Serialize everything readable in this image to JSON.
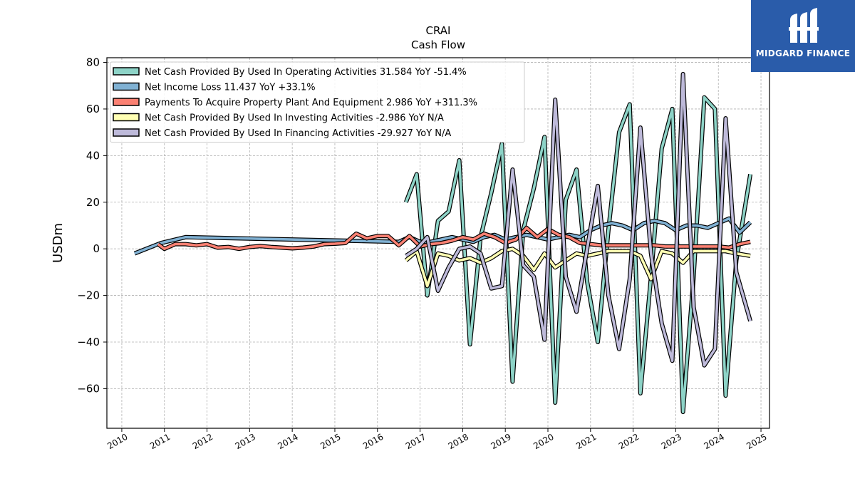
{
  "branding": {
    "name": "MIDGARD FINANCE",
    "icon": "midgard-logo-icon",
    "background": "#2a5caa"
  },
  "chart_data": {
    "type": "line",
    "title": "CRAI",
    "subtitle": "Cash Flow",
    "xlabel": "",
    "ylabel": "USDm",
    "xlim": [
      2009.65,
      2025.2
    ],
    "ylim": [
      -77,
      82
    ],
    "grid": true,
    "legend_position": "top-left",
    "x_ticks": [
      2010,
      2011,
      2012,
      2013,
      2014,
      2015,
      2016,
      2017,
      2018,
      2019,
      2020,
      2021,
      2022,
      2023,
      2024,
      2025
    ],
    "y_ticks": [
      80,
      60,
      40,
      20,
      0,
      -20,
      -40,
      -60
    ],
    "y_tick_labels": [
      "80",
      "60",
      "40",
      "20",
      "0",
      "−20",
      "−40",
      "−60"
    ],
    "series": [
      {
        "name": "Net Cash Provided By Used In Operating Activities  31.584 YoY -51.4%",
        "color": "#8dd3c7",
        "x": [
          2016.67,
          2016.92,
          2017.17,
          2017.42,
          2017.67,
          2017.92,
          2018.17,
          2018.42,
          2018.67,
          2018.92,
          2019.17,
          2019.42,
          2019.67,
          2019.92,
          2020.17,
          2020.42,
          2020.67,
          2020.92,
          2021.17,
          2021.42,
          2021.67,
          2021.92,
          2022.17,
          2022.42,
          2022.67,
          2022.92,
          2023.17,
          2023.42,
          2023.67,
          2023.92,
          2024.17,
          2024.42,
          2024.75
        ],
        "y": [
          20,
          32,
          -20,
          12,
          16,
          38,
          -41,
          5,
          24,
          45,
          -57,
          8,
          26,
          48,
          -66,
          21,
          34,
          -14,
          -40,
          8,
          50,
          62,
          -62,
          -12,
          43,
          60,
          -70,
          -12,
          65,
          60,
          -63,
          -5,
          32
        ]
      },
      {
        "name": "Net Income Loss  11.437 YoY +33.1%",
        "color": "#80b1d3",
        "x": [
          2010.3,
          2010.92,
          2011.5,
          2016.5,
          2016.75,
          2017.0,
          2017.25,
          2017.5,
          2017.75,
          2018.0,
          2018.25,
          2018.5,
          2018.75,
          2019.0,
          2019.25,
          2019.5,
          2019.75,
          2020.0,
          2020.25,
          2020.5,
          2020.75,
          2021.0,
          2021.25,
          2021.5,
          2021.75,
          2022.0,
          2022.25,
          2022.5,
          2022.75,
          2023.0,
          2023.25,
          2023.5,
          2023.75,
          2024.0,
          2024.25,
          2024.5,
          2024.75
        ],
        "y": [
          -2,
          2.5,
          5,
          3,
          5,
          3,
          3,
          4,
          5,
          4,
          3,
          5,
          6,
          4,
          5,
          6,
          5,
          4,
          5,
          6,
          5,
          8,
          10,
          11,
          10,
          8,
          11,
          12,
          11,
          8,
          10,
          10,
          9,
          11,
          13,
          7,
          11.4
        ]
      },
      {
        "name": "Payments To Acquire Property Plant And Equipment  2.986 YoY +311.3%",
        "color": "#fb8072",
        "x": [
          2010.85,
          2011.0,
          2011.25,
          2011.5,
          2011.75,
          2012.0,
          2012.25,
          2012.5,
          2012.75,
          2013.0,
          2013.25,
          2013.5,
          2013.75,
          2014.0,
          2014.25,
          2014.5,
          2014.75,
          2015.0,
          2015.25,
          2015.5,
          2015.75,
          2016.0,
          2016.25,
          2016.5,
          2016.75,
          2017.0,
          2017.25,
          2017.5,
          2017.75,
          2018.0,
          2018.25,
          2018.5,
          2018.75,
          2019.0,
          2019.25,
          2019.5,
          2019.75,
          2020.0,
          2020.25,
          2020.5,
          2020.75,
          2021.0,
          2021.25,
          2021.5,
          2021.75,
          2022.0,
          2022.25,
          2022.5,
          2022.75,
          2023.0,
          2023.25,
          2023.5,
          2023.75,
          2024.0,
          2024.25,
          2024.5,
          2024.75
        ],
        "y": [
          2,
          0,
          2,
          2,
          1.5,
          2,
          0.5,
          0.8,
          0,
          0.8,
          1.2,
          0.8,
          0.5,
          0.2,
          0.5,
          1,
          2,
          2.2,
          2.5,
          6.5,
          4.5,
          5.5,
          5.5,
          1.5,
          5.5,
          1,
          2,
          2.5,
          3.5,
          5,
          4,
          6.5,
          5,
          2.5,
          4,
          9,
          5,
          8.5,
          6,
          5,
          2.5,
          2,
          1.5,
          1.5,
          1.5,
          1.5,
          1.5,
          1.5,
          1,
          1,
          1,
          1,
          1,
          1,
          0.5,
          2,
          3
        ]
      },
      {
        "name": "Net Cash Provided By Used In Investing Activities  -2.986 YoY N/A",
        "color": "#ffffb3",
        "x": [
          2016.67,
          2016.92,
          2017.17,
          2017.42,
          2017.67,
          2017.92,
          2018.17,
          2018.42,
          2018.67,
          2018.92,
          2019.17,
          2019.42,
          2019.67,
          2019.92,
          2020.17,
          2020.42,
          2020.67,
          2020.92,
          2021.17,
          2021.42,
          2021.67,
          2021.92,
          2022.17,
          2022.42,
          2022.67,
          2022.92,
          2023.17,
          2023.42,
          2023.67,
          2023.92,
          2024.17,
          2024.42,
          2024.75
        ],
        "y": [
          -5,
          -1,
          -16,
          -2,
          -3,
          -5,
          -4,
          -6,
          -4,
          -1,
          0,
          -3,
          -9,
          -2,
          -8,
          -5,
          -2,
          -3,
          -2,
          -1,
          -1,
          -1,
          -3,
          -13,
          -1,
          -2,
          -6,
          -1,
          -1,
          -1,
          -1,
          -2,
          -3
        ]
      },
      {
        "name": "Net Cash Provided By Used In Financing Activities  -29.927 YoY N/A",
        "color": "#bebada",
        "x": [
          2016.67,
          2016.92,
          2017.17,
          2017.42,
          2017.67,
          2017.92,
          2018.17,
          2018.42,
          2018.67,
          2018.92,
          2019.17,
          2019.42,
          2019.67,
          2019.92,
          2020.17,
          2020.42,
          2020.67,
          2020.92,
          2021.17,
          2021.42,
          2021.67,
          2021.92,
          2022.17,
          2022.42,
          2022.67,
          2022.92,
          2023.17,
          2023.42,
          2023.67,
          2023.92,
          2024.17,
          2024.42,
          2024.75
        ],
        "y": [
          -3,
          0,
          5,
          -18,
          -8,
          0,
          1,
          -2,
          -17,
          -16,
          34,
          -7,
          -12,
          -39,
          64,
          -12,
          -27,
          0,
          27,
          -20,
          -43,
          -13,
          52,
          -2,
          -32,
          -48,
          75,
          -25,
          -50,
          -43,
          56,
          -10,
          -31
        ]
      }
    ]
  }
}
